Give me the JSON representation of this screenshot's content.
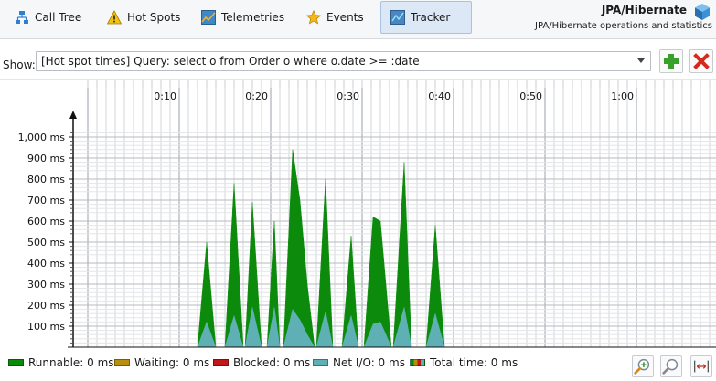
{
  "toolbar": {
    "tabs": [
      {
        "label": "Call Tree",
        "icon": "call-tree-icon"
      },
      {
        "label": "Hot Spots",
        "icon": "warning-icon"
      },
      {
        "label": "Telemetries",
        "icon": "telemetries-icon"
      },
      {
        "label": "Events",
        "icon": "star-icon"
      },
      {
        "label": "Tracker",
        "icon": "tracker-icon",
        "active": true
      }
    ],
    "title": "JPA/Hibernate",
    "subtitle": "JPA/Hibernate operations and statistics"
  },
  "show": {
    "label": "Show:",
    "tag": "[Hot spot times]",
    "query": "Query: select o from Order o where o.date >= :date"
  },
  "chart_data": {
    "type": "area",
    "x_ticks": [
      "0:10",
      "0:20",
      "0:30",
      "0:40",
      "0:50",
      "1:00"
    ],
    "y_ticks": [
      "100 ms",
      "200 ms",
      "300 ms",
      "400 ms",
      "500 ms",
      "600 ms",
      "700 ms",
      "800 ms",
      "900 ms",
      "1,000 ms"
    ],
    "xlim_seconds": [
      0,
      68
    ],
    "ylim_ms": [
      0,
      1000
    ],
    "series": [
      {
        "name": "Runnable",
        "color": "#0c8a0c",
        "points": [
          [
            12,
            0
          ],
          [
            13,
            500
          ],
          [
            14,
            0
          ],
          [
            15,
            0
          ],
          [
            16,
            780
          ],
          [
            17,
            0
          ],
          [
            17.2,
            0
          ],
          [
            18,
            690
          ],
          [
            19,
            0
          ],
          [
            19.6,
            0
          ],
          [
            20.4,
            600
          ],
          [
            21,
            0
          ],
          [
            21.4,
            0
          ],
          [
            22.4,
            940
          ],
          [
            23.2,
            700
          ],
          [
            24,
            300
          ],
          [
            24.8,
            0
          ],
          [
            25,
            0
          ],
          [
            26,
            800
          ],
          [
            26.8,
            0
          ],
          [
            27.8,
            0
          ],
          [
            28.8,
            530
          ],
          [
            29.6,
            0
          ],
          [
            30.2,
            0
          ],
          [
            31.2,
            620
          ],
          [
            32,
            600
          ],
          [
            33.2,
            0
          ],
          [
            33.4,
            0
          ],
          [
            34.6,
            880
          ],
          [
            35.4,
            0
          ],
          [
            37,
            0
          ],
          [
            38,
            580
          ],
          [
            39,
            0
          ]
        ]
      },
      {
        "name": "Net I/O",
        "color": "#5fb0b4",
        "points": [
          [
            12,
            0
          ],
          [
            13,
            120
          ],
          [
            14,
            0
          ],
          [
            15,
            0
          ],
          [
            16,
            150
          ],
          [
            17,
            0
          ],
          [
            17.2,
            0
          ],
          [
            18,
            190
          ],
          [
            19,
            0
          ],
          [
            19.6,
            0
          ],
          [
            20.4,
            190
          ],
          [
            21,
            0
          ],
          [
            21.4,
            0
          ],
          [
            22.4,
            180
          ],
          [
            23.2,
            130
          ],
          [
            24,
            60
          ],
          [
            24.8,
            0
          ],
          [
            25,
            0
          ],
          [
            26,
            170
          ],
          [
            26.8,
            0
          ],
          [
            27.8,
            0
          ],
          [
            28.8,
            150
          ],
          [
            29.6,
            0
          ],
          [
            30.2,
            0
          ],
          [
            31.2,
            110
          ],
          [
            32,
            120
          ],
          [
            33.2,
            0
          ],
          [
            33.4,
            0
          ],
          [
            34.6,
            190
          ],
          [
            35.4,
            0
          ],
          [
            37,
            0
          ],
          [
            38,
            160
          ],
          [
            39,
            0
          ]
        ]
      }
    ]
  },
  "legend": [
    {
      "label": "Runnable: 0 ms",
      "color": "#0c8a0c"
    },
    {
      "label": "Waiting: 0 ms",
      "color": "#b8900d"
    },
    {
      "label": "Blocked: 0 ms",
      "color": "#c01818"
    },
    {
      "label": "Net I/O: 0 ms",
      "color": "#5fb0b4"
    },
    {
      "label": "Total time: 0 ms",
      "color": "multi"
    }
  ],
  "zoom": {
    "icons": [
      "zoom-in-icon",
      "zoom-out-icon",
      "fit-width-icon"
    ]
  }
}
